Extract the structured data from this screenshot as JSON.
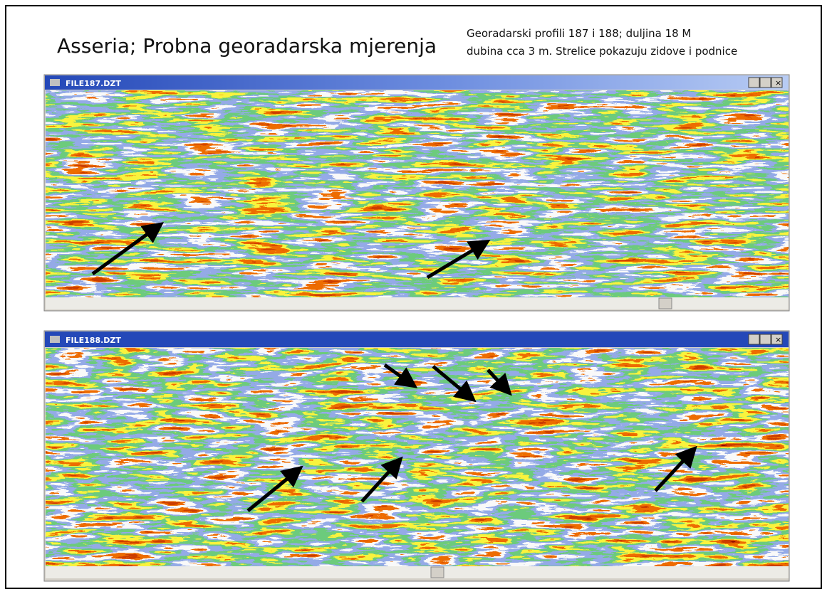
{
  "header": {
    "title": "Asseria; Probna georadarska mjerenja",
    "caption": [
      "Georadarski profili 187 i 188; duljina 18 M",
      "dubina cca 3 m. Strelice pokazuju zidove i podnice"
    ]
  },
  "windows": [
    {
      "title": "FILE187.DZT"
    },
    {
      "title": "FILE188.DZT"
    }
  ]
}
